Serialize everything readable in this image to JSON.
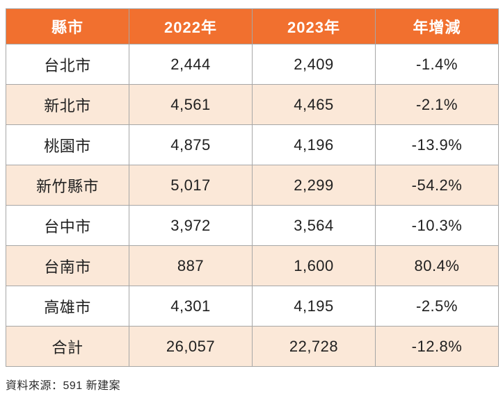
{
  "table": {
    "columns": [
      "縣市",
      "2022年",
      "2023年",
      "年增減"
    ],
    "rows": [
      {
        "city": "台北市",
        "y2022": "2,444",
        "y2023": "2,409",
        "change": "-1.4%"
      },
      {
        "city": "新北市",
        "y2022": "4,561",
        "y2023": "4,465",
        "change": "-2.1%"
      },
      {
        "city": "桃園市",
        "y2022": "4,875",
        "y2023": "4,196",
        "change": "-13.9%"
      },
      {
        "city": "新竹縣市",
        "y2022": "5,017",
        "y2023": "2,299",
        "change": "-54.2%"
      },
      {
        "city": "台中市",
        "y2022": "3,972",
        "y2023": "3,564",
        "change": "-10.3%"
      },
      {
        "city": "台南市",
        "y2022": "887",
        "y2023": "1,600",
        "change": "80.4%"
      },
      {
        "city": "高雄市",
        "y2022": "4,301",
        "y2023": "4,195",
        "change": "-2.5%"
      },
      {
        "city": "合計",
        "y2022": "26,057",
        "y2023": "22,728",
        "change": "-12.8%"
      }
    ]
  },
  "source": "資料來源：591 新建案",
  "colors": {
    "header_bg": "#f1702f",
    "header_text": "#ffffff",
    "row_alt_bg": "#fbe8d8",
    "border": "#a6a6a6",
    "body_text": "#1f1f1f"
  },
  "chart_data": {
    "type": "table",
    "title": "",
    "columns": [
      "縣市",
      "2022年",
      "2023年",
      "年增減"
    ],
    "rows": [
      [
        "台北市",
        2444,
        2409,
        "-1.4%"
      ],
      [
        "新北市",
        4561,
        4465,
        "-2.1%"
      ],
      [
        "桃園市",
        4875,
        4196,
        "-13.9%"
      ],
      [
        "新竹縣市",
        5017,
        2299,
        "-54.2%"
      ],
      [
        "台中市",
        3972,
        3564,
        "-10.3%"
      ],
      [
        "台南市",
        887,
        1600,
        "80.4%"
      ],
      [
        "高雄市",
        4301,
        4195,
        "-2.5%"
      ],
      [
        "合計",
        26057,
        22728,
        "-12.8%"
      ]
    ],
    "source": "資料來源：591 新建案"
  }
}
